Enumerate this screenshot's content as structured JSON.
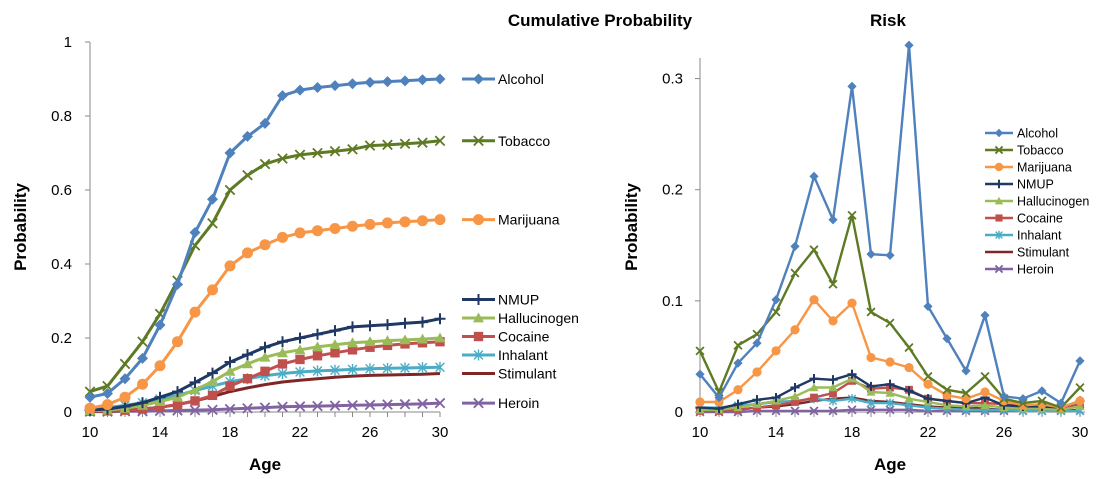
{
  "chart_data": [
    {
      "type": "line",
      "title": "Cumulative Probability",
      "xlabel": "Age",
      "ylabel": "Probability",
      "x": [
        10,
        11,
        12,
        13,
        14,
        15,
        16,
        17,
        18,
        19,
        20,
        21,
        22,
        23,
        24,
        25,
        26,
        27,
        28,
        29,
        30
      ],
      "xticks": [
        10,
        14,
        18,
        22,
        26,
        30
      ],
      "xtick_labels": [
        "10",
        "14",
        "18",
        "22",
        "26",
        "30"
      ],
      "xlim": [
        10,
        30
      ],
      "ylim": [
        0,
        1
      ],
      "yticks": [
        0,
        0.2,
        0.4,
        0.6,
        0.8,
        1
      ],
      "ytick_labels": [
        "0",
        "0.2",
        "0.4",
        "0.6",
        "0.8",
        "1"
      ],
      "legend_placement": "right",
      "series": [
        {
          "name": "Alcohol",
          "color": "#4F81BD",
          "marker": "diamond",
          "values": [
            0.04,
            0.05,
            0.09,
            0.145,
            0.235,
            0.345,
            0.485,
            0.575,
            0.7,
            0.745,
            0.78,
            0.855,
            0.87,
            0.877,
            0.882,
            0.887,
            0.891,
            0.893,
            0.895,
            0.898,
            0.9
          ]
        },
        {
          "name": "Tobacco",
          "color": "#5E7A24",
          "marker": "x",
          "values": [
            0.055,
            0.07,
            0.13,
            0.19,
            0.265,
            0.355,
            0.45,
            0.51,
            0.6,
            0.64,
            0.67,
            0.685,
            0.695,
            0.7,
            0.705,
            0.71,
            0.72,
            0.722,
            0.725,
            0.728,
            0.733
          ]
        },
        {
          "name": "Marijuana",
          "color": "#F79646",
          "marker": "circle",
          "values": [
            0.01,
            0.02,
            0.04,
            0.075,
            0.125,
            0.19,
            0.27,
            0.33,
            0.395,
            0.43,
            0.452,
            0.472,
            0.484,
            0.49,
            0.496,
            0.502,
            0.507,
            0.511,
            0.514,
            0.517,
            0.52
          ]
        },
        {
          "name": "NMUP",
          "color": "#1F3864",
          "marker": "plus",
          "values": [
            0.005,
            0.008,
            0.015,
            0.025,
            0.04,
            0.055,
            0.08,
            0.105,
            0.135,
            0.155,
            0.175,
            0.19,
            0.2,
            0.21,
            0.22,
            0.23,
            0.233,
            0.236,
            0.24,
            0.243,
            0.252
          ]
        },
        {
          "name": "Hallucinogen",
          "color": "#9BBB59",
          "marker": "triangle",
          "values": [
            0.003,
            0.005,
            0.01,
            0.018,
            0.028,
            0.04,
            0.06,
            0.082,
            0.11,
            0.13,
            0.148,
            0.16,
            0.168,
            0.176,
            0.182,
            0.187,
            0.19,
            0.193,
            0.195,
            0.197,
            0.2
          ]
        },
        {
          "name": "Cocaine",
          "color": "#C0504D",
          "marker": "square",
          "values": [
            0.002,
            0.003,
            0.005,
            0.008,
            0.013,
            0.02,
            0.03,
            0.045,
            0.07,
            0.09,
            0.11,
            0.13,
            0.142,
            0.152,
            0.16,
            0.168,
            0.175,
            0.18,
            0.184,
            0.187,
            0.19
          ]
        },
        {
          "name": "Inhalant",
          "color": "#4BACC6",
          "marker": "asterisk",
          "values": [
            0.008,
            0.012,
            0.018,
            0.025,
            0.035,
            0.045,
            0.058,
            0.07,
            0.082,
            0.09,
            0.098,
            0.104,
            0.108,
            0.111,
            0.113,
            0.115,
            0.117,
            0.118,
            0.119,
            0.12,
            0.121
          ]
        },
        {
          "name": "Stimulant",
          "color": "#7F2626",
          "marker": "none",
          "values": [
            0.001,
            0.002,
            0.004,
            0.008,
            0.013,
            0.02,
            0.03,
            0.042,
            0.055,
            0.065,
            0.074,
            0.081,
            0.086,
            0.09,
            0.094,
            0.097,
            0.099,
            0.1,
            0.101,
            0.102,
            0.104
          ]
        },
        {
          "name": "Heroin",
          "color": "#8064A2",
          "marker": "x",
          "values": [
            0.001,
            0.001,
            0.002,
            0.002,
            0.003,
            0.004,
            0.005,
            0.006,
            0.008,
            0.01,
            0.012,
            0.014,
            0.015,
            0.016,
            0.017,
            0.018,
            0.019,
            0.02,
            0.021,
            0.022,
            0.024
          ]
        }
      ]
    },
    {
      "type": "line",
      "title": "Risk",
      "xlabel": "Age",
      "ylabel": "Probability",
      "x": [
        10,
        11,
        12,
        13,
        14,
        15,
        16,
        17,
        18,
        19,
        20,
        21,
        22,
        23,
        24,
        25,
        26,
        27,
        28,
        29,
        30
      ],
      "xticks": [
        10,
        14,
        18,
        22,
        26,
        30
      ],
      "xtick_labels": [
        "10",
        "14",
        "18",
        "22",
        "26",
        "30"
      ],
      "xlim": [
        10,
        30
      ],
      "ylim": [
        0,
        0.35
      ],
      "yticks": [
        0,
        0.1,
        0.2,
        0.3
      ],
      "ytick_labels": [
        "0",
        "0.1",
        "0.2",
        "0.3"
      ],
      "legend_placement": "top-right",
      "series": [
        {
          "name": "Alcohol",
          "color": "#4F81BD",
          "marker": "diamond",
          "values": [
            0.034,
            0.013,
            0.044,
            0.062,
            0.101,
            0.149,
            0.212,
            0.173,
            0.293,
            0.142,
            0.141,
            0.33,
            0.095,
            0.066,
            0.037,
            0.087,
            0.014,
            0.012,
            0.019,
            0.008,
            0.046
          ]
        },
        {
          "name": "Tobacco",
          "color": "#5E7A24",
          "marker": "x",
          "values": [
            0.055,
            0.018,
            0.06,
            0.07,
            0.09,
            0.125,
            0.146,
            0.115,
            0.177,
            0.09,
            0.08,
            0.058,
            0.032,
            0.02,
            0.017,
            0.032,
            0.012,
            0.008,
            0.01,
            0.004,
            0.022
          ]
        },
        {
          "name": "Marijuana",
          "color": "#F79646",
          "marker": "circle",
          "values": [
            0.009,
            0.009,
            0.02,
            0.036,
            0.055,
            0.074,
            0.101,
            0.082,
            0.098,
            0.049,
            0.045,
            0.04,
            0.025,
            0.015,
            0.012,
            0.018,
            0.01,
            0.006,
            0.007,
            0.004,
            0.01
          ]
        },
        {
          "name": "NMUP",
          "color": "#1F3864",
          "marker": "plus",
          "values": [
            0.004,
            0.003,
            0.007,
            0.011,
            0.013,
            0.022,
            0.03,
            0.029,
            0.034,
            0.023,
            0.025,
            0.019,
            0.012,
            0.01,
            0.008,
            0.013,
            0.006,
            0.005,
            0.005,
            0.004,
            0.01
          ]
        },
        {
          "name": "Hallucinogen",
          "color": "#9BBB59",
          "marker": "triangle",
          "values": [
            0.002,
            0.002,
            0.004,
            0.007,
            0.01,
            0.014,
            0.022,
            0.022,
            0.03,
            0.018,
            0.017,
            0.012,
            0.009,
            0.006,
            0.005,
            0.006,
            0.004,
            0.003,
            0.003,
            0.002,
            0.005
          ]
        },
        {
          "name": "Cocaine",
          "color": "#C0504D",
          "marker": "square",
          "values": [
            0.001,
            0.001,
            0.002,
            0.004,
            0.006,
            0.009,
            0.013,
            0.017,
            0.028,
            0.021,
            0.022,
            0.02,
            0.012,
            0.01,
            0.008,
            0.008,
            0.007,
            0.005,
            0.004,
            0.003,
            0.007
          ]
        },
        {
          "name": "Inhalant",
          "color": "#4BACC6",
          "marker": "asterisk",
          "values": [
            0.004,
            0.004,
            0.006,
            0.007,
            0.009,
            0.01,
            0.012,
            0.01,
            0.012,
            0.008,
            0.008,
            0.006,
            0.004,
            0.003,
            0.002,
            0.002,
            0.002,
            0.001,
            0.001,
            0.001,
            0.001
          ]
        },
        {
          "name": "Stimulant",
          "color": "#7F2626",
          "marker": "none",
          "values": [
            0.001,
            0.001,
            0.002,
            0.004,
            0.005,
            0.007,
            0.01,
            0.012,
            0.013,
            0.01,
            0.009,
            0.007,
            0.005,
            0.004,
            0.004,
            0.003,
            0.002,
            0.002,
            0.001,
            0.001,
            0.002
          ]
        },
        {
          "name": "Heroin",
          "color": "#8064A2",
          "marker": "x",
          "values": [
            0.0,
            0.0,
            0.0,
            0.001,
            0.001,
            0.001,
            0.001,
            0.001,
            0.002,
            0.002,
            0.002,
            0.002,
            0.001,
            0.001,
            0.001,
            0.001,
            0.001,
            0.001,
            0.001,
            0.001,
            0.001
          ]
        }
      ]
    }
  ]
}
